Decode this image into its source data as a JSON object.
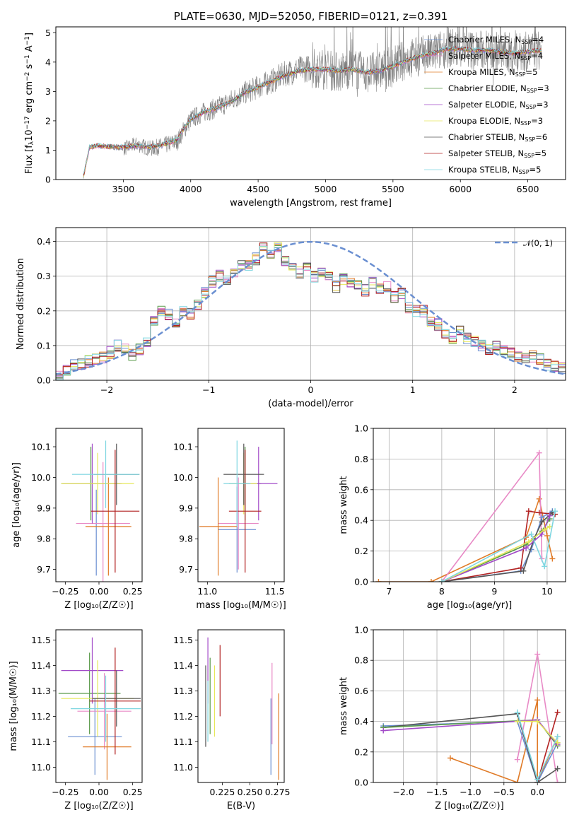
{
  "colors": {
    "chabrier_miles": "#6a8fd1",
    "salpeter_miles": "#e88ac6",
    "kroupa_miles": "#e07b28",
    "chabrier_elodie": "#5a9a4a",
    "salpeter_elodie": "#a24ac8",
    "kroupa_elodie": "#e6e85a",
    "chabrier_stelib": "#555555",
    "salpeter_stelib": "#b22222",
    "kroupa_stelib": "#7fd6e0",
    "data": "#808080",
    "gauss": "#6a8fd1"
  },
  "chart_data": [
    {
      "id": "spectrum",
      "type": "line",
      "title": "PLATE=0630, MJD=52050, FIBERID=0121, z=0.391",
      "xlabel": "wavelength [Angstrom, rest frame]",
      "ylabel_parts": [
        "Flux [f",
        "λ",
        "10",
        "−17",
        " erg cm",
        "−2",
        " s",
        "−1",
        " A",
        "−1",
        "]"
      ],
      "xlim": [
        3000,
        6780
      ],
      "ylim": [
        0,
        5.2
      ],
      "xticks": [
        3500,
        4000,
        4500,
        5000,
        5500,
        6000,
        6500
      ],
      "yticks": [
        0,
        1,
        2,
        3,
        4,
        5
      ],
      "x": [
        3200,
        3250,
        3300,
        3400,
        3500,
        3600,
        3700,
        3800,
        3900,
        3950,
        4000,
        4100,
        4200,
        4300,
        4400,
        4500,
        4600,
        4700,
        4800,
        4900,
        5000,
        5100,
        5200,
        5300,
        5400,
        5500,
        5600,
        5700,
        5800,
        5900,
        6000,
        6100,
        6200,
        6300,
        6400,
        6500,
        6600
      ],
      "data_flux": [
        0.0,
        1.1,
        1.15,
        1.1,
        1.05,
        1.2,
        1.05,
        1.15,
        1.3,
        1.7,
        2.05,
        2.3,
        2.45,
        2.7,
        2.95,
        3.15,
        3.35,
        3.6,
        3.75,
        3.8,
        3.75,
        3.65,
        3.8,
        3.6,
        3.7,
        3.85,
        4.1,
        4.2,
        4.3,
        4.5,
        4.45,
        4.4,
        4.4,
        4.35,
        4.3,
        4.35,
        4.4
      ],
      "model_flux": [
        0.0,
        1.1,
        1.15,
        1.12,
        1.1,
        1.15,
        1.1,
        1.2,
        1.35,
        1.75,
        2.05,
        2.3,
        2.45,
        2.65,
        2.95,
        3.15,
        3.35,
        3.55,
        3.7,
        3.75,
        3.75,
        3.7,
        3.75,
        3.65,
        3.7,
        3.85,
        4.05,
        4.2,
        4.3,
        4.45,
        4.45,
        4.4,
        4.4,
        4.35,
        4.3,
        4.35,
        4.4
      ],
      "legend_loc": "upper right",
      "legend": [
        {
          "name": "Chabrier MILES",
          "n": "4",
          "color_key": "chabrier_miles"
        },
        {
          "name": "Salpeter MILES",
          "n": "4",
          "color_key": "salpeter_miles"
        },
        {
          "name": "Kroupa MILES",
          "n": "5",
          "color_key": "kroupa_miles"
        },
        {
          "name": "Chabrier ELODIE",
          "n": "3",
          "color_key": "chabrier_elodie"
        },
        {
          "name": "Salpeter ELODIE",
          "n": "3",
          "color_key": "salpeter_elodie"
        },
        {
          "name": "Kroupa ELODIE",
          "n": "3",
          "color_key": "kroupa_elodie"
        },
        {
          "name": "Chabrier STELIB",
          "n": "6",
          "color_key": "chabrier_stelib"
        },
        {
          "name": "Salpeter STELIB",
          "n": "5",
          "color_key": "salpeter_stelib"
        },
        {
          "name": "Kroupa STELIB",
          "n": "5",
          "color_key": "kroupa_stelib"
        }
      ]
    },
    {
      "id": "residuals",
      "type": "line",
      "xlabel": "(data-model)/error",
      "ylabel": "Normed distribution",
      "xlim": [
        -2.5,
        2.5
      ],
      "ylim": [
        0,
        0.44
      ],
      "xticks": [
        -2,
        -1,
        0,
        1,
        2
      ],
      "xticklabels": [
        "−2",
        "−1",
        "0",
        "1",
        "2"
      ],
      "yticks": [
        0.0,
        0.1,
        0.2,
        0.3,
        0.4
      ],
      "yticklabels": [
        "0.0",
        "0.1",
        "0.2",
        "0.3",
        "0.4"
      ],
      "bin_width": 0.1,
      "hist_base": [
        0.018,
        0.028,
        0.042,
        0.048,
        0.055,
        0.06,
        0.065,
        0.08,
        0.1,
        0.09,
        0.075,
        0.09,
        0.11,
        0.17,
        0.2,
        0.19,
        0.165,
        0.2,
        0.19,
        0.215,
        0.255,
        0.285,
        0.3,
        0.285,
        0.31,
        0.33,
        0.33,
        0.35,
        0.38,
        0.36,
        0.38,
        0.34,
        0.32,
        0.31,
        0.33,
        0.3,
        0.31,
        0.3,
        0.27,
        0.29,
        0.28,
        0.27,
        0.26,
        0.28,
        0.26,
        0.27,
        0.24,
        0.25,
        0.21,
        0.2,
        0.2,
        0.17,
        0.16,
        0.13,
        0.12,
        0.14,
        0.12,
        0.11,
        0.1,
        0.09,
        0.1,
        0.085,
        0.08,
        0.07,
        0.065,
        0.07,
        0.06,
        0.045,
        0.04,
        0.035
      ],
      "legend": [
        {
          "name": "𝒩(0, 1)",
          "color_key": "gauss",
          "style": "dashed"
        }
      ],
      "legend_loc": "upper right"
    },
    {
      "id": "z_age",
      "type": "scatter",
      "xlabel": "Z [log₁₀(Z/Z☉)]",
      "ylabel": "age  [log₁₀(age/yr)]",
      "xlim": [
        -0.32,
        0.32
      ],
      "ylim": [
        9.66,
        10.16
      ],
      "xticks": [
        -0.25,
        0.0,
        0.25
      ],
      "xticklabels": [
        "−0.25",
        "0.00",
        "0.25"
      ],
      "yticks": [
        9.7,
        9.8,
        9.9,
        10.0,
        10.1
      ],
      "yticklabels": [
        "9.7",
        "9.8",
        "9.9",
        "10.0",
        "10.1"
      ],
      "points": [
        {
          "x": -0.02,
          "y": 9.82,
          "xerr": 0.0,
          "yerr": 0.14,
          "color_key": "chabrier_miles"
        },
        {
          "x": 0.03,
          "y": 9.85,
          "xerr": 0.2,
          "yerr": 0.2,
          "color_key": "salpeter_miles"
        },
        {
          "x": 0.07,
          "y": 9.84,
          "xerr": 0.17,
          "yerr": 0.16,
          "color_key": "kroupa_miles"
        },
        {
          "x": -0.06,
          "y": 9.98,
          "xerr": 0.22,
          "yerr": 0.12,
          "color_key": "chabrier_elodie"
        },
        {
          "x": -0.05,
          "y": 9.98,
          "xerr": 0.22,
          "yerr": 0.13,
          "color_key": "salpeter_elodie"
        },
        {
          "x": -0.01,
          "y": 9.98,
          "xerr": 0.27,
          "yerr": 0.1,
          "color_key": "kroupa_elodie"
        },
        {
          "x": 0.13,
          "y": 10.01,
          "xerr": 0.17,
          "yerr": 0.1,
          "color_key": "chabrier_stelib"
        },
        {
          "x": 0.12,
          "y": 9.89,
          "xerr": 0.18,
          "yerr": 0.2,
          "color_key": "salpeter_stelib"
        },
        {
          "x": 0.05,
          "y": 10.01,
          "xerr": 0.25,
          "yerr": 0.11,
          "color_key": "kroupa_stelib"
        }
      ]
    },
    {
      "id": "mass_age",
      "type": "scatter",
      "xlabel": "mass [log₁₀(M/M☉)]",
      "xlim": [
        10.93,
        11.57
      ],
      "ylim": [
        9.66,
        10.16
      ],
      "xticks": [
        11.0,
        11.5
      ],
      "xticklabels": [
        "11.0",
        "11.5"
      ],
      "yticks": [
        9.7,
        9.8,
        9.9,
        10.0,
        10.1
      ],
      "yticklabels": [
        "9.7",
        "9.8",
        "9.9",
        "10.0",
        "10.1"
      ],
      "points": [
        {
          "x": 11.22,
          "y": 9.83,
          "xerr": 0.14,
          "yerr": 0.14,
          "color_key": "chabrier_miles"
        },
        {
          "x": 11.23,
          "y": 9.85,
          "xerr": 0.15,
          "yerr": 0.15,
          "color_key": "salpeter_miles"
        },
        {
          "x": 11.08,
          "y": 9.84,
          "xerr": 0.14,
          "yerr": 0.16,
          "color_key": "kroupa_miles"
        },
        {
          "x": 11.28,
          "y": 9.98,
          "xerr": 0.12,
          "yerr": 0.12,
          "color_key": "chabrier_elodie"
        },
        {
          "x": 11.38,
          "y": 9.98,
          "xerr": 0.14,
          "yerr": 0.12,
          "color_key": "salpeter_elodie"
        },
        {
          "x": 11.27,
          "y": 9.98,
          "xerr": 0.1,
          "yerr": 0.1,
          "color_key": "kroupa_elodie"
        },
        {
          "x": 11.27,
          "y": 10.01,
          "xerr": 0.15,
          "yerr": 0.1,
          "color_key": "chabrier_stelib"
        },
        {
          "x": 11.28,
          "y": 9.89,
          "xerr": 0.12,
          "yerr": 0.2,
          "color_key": "salpeter_stelib"
        },
        {
          "x": 11.22,
          "y": 9.98,
          "xerr": 0.1,
          "yerr": 0.14,
          "color_key": "kroupa_stelib"
        }
      ]
    },
    {
      "id": "age_weight",
      "type": "line",
      "xlabel": "age  [log₁₀(age/yr)]",
      "ylabel": "mass weight",
      "xlim": [
        6.7,
        10.35
      ],
      "ylim": [
        0,
        1.0
      ],
      "xticks": [
        7,
        8,
        9,
        10
      ],
      "xticklabels": [
        "7",
        "8",
        "9",
        "10"
      ],
      "yticks": [
        0.0,
        0.2,
        0.4,
        0.6,
        0.8,
        1.0
      ],
      "yticklabels": [
        "0.0",
        "0.2",
        "0.4",
        "0.6",
        "0.8",
        "1.0"
      ],
      "series": [
        {
          "color_key": "kroupa_miles",
          "x": [
            6.8,
            7.8,
            9.6,
            9.85,
            10.0,
            10.1
          ],
          "y": [
            0.0,
            0.0,
            0.29,
            0.54,
            0.3,
            0.15
          ]
        },
        {
          "color_key": "salpeter_miles",
          "x": [
            8.0,
            9.85,
            9.9
          ],
          "y": [
            0.0,
            0.84,
            0.15
          ]
        },
        {
          "color_key": "chabrier_miles",
          "x": [
            8.0,
            9.5,
            9.7,
            9.9,
            10.1
          ],
          "y": [
            0.0,
            0.07,
            0.21,
            0.42,
            0.46
          ]
        },
        {
          "color_key": "salpeter_stelib",
          "x": [
            8.0,
            9.5,
            9.65,
            9.85,
            10.15
          ],
          "y": [
            0.0,
            0.09,
            0.46,
            0.45,
            0.44
          ]
        },
        {
          "color_key": "chabrier_stelib",
          "x": [
            8.0,
            9.55,
            9.75,
            9.9,
            10.1
          ],
          "y": [
            0.0,
            0.07,
            0.28,
            0.39,
            0.45
          ]
        },
        {
          "color_key": "chabrier_elodie",
          "x": [
            8.0,
            9.6,
            9.9,
            10.05
          ],
          "y": [
            0.0,
            0.24,
            0.33,
            0.41
          ]
        },
        {
          "color_key": "salpeter_elodie",
          "x": [
            8.0,
            9.6,
            9.9,
            10.05
          ],
          "y": [
            0.0,
            0.22,
            0.31,
            0.43
          ]
        },
        {
          "color_key": "kroupa_elodie",
          "x": [
            8.0,
            9.65,
            9.95,
            10.05
          ],
          "y": [
            0.0,
            0.26,
            0.34,
            0.36
          ]
        },
        {
          "color_key": "kroupa_stelib",
          "x": [
            8.0,
            9.7,
            9.95,
            10.15
          ],
          "y": [
            0.0,
            0.31,
            0.1,
            0.46
          ]
        }
      ]
    },
    {
      "id": "z_mass",
      "type": "scatter",
      "xlabel": "Z [log₁₀(Z/Z☉)]",
      "ylabel": "mass [log₁₀(M/M☉)]",
      "xlim": [
        -0.32,
        0.32
      ],
      "ylim": [
        10.94,
        11.54
      ],
      "xticks": [
        -0.25,
        0.0,
        0.25
      ],
      "xticklabels": [
        "−0.25",
        "0.00",
        "0.25"
      ],
      "yticks": [
        11.0,
        11.1,
        11.2,
        11.3,
        11.4,
        11.5
      ],
      "yticklabels": [
        "11.0",
        "11.1",
        "11.2",
        "11.3",
        "11.4",
        "11.5"
      ],
      "points": [
        {
          "x": -0.03,
          "y": 11.12,
          "xerr": 0.2,
          "yerr": 0.15,
          "color_key": "chabrier_miles"
        },
        {
          "x": 0.04,
          "y": 11.22,
          "xerr": 0.2,
          "yerr": 0.15,
          "color_key": "salpeter_miles"
        },
        {
          "x": 0.06,
          "y": 11.08,
          "xerr": 0.18,
          "yerr": 0.13,
          "color_key": "kroupa_miles"
        },
        {
          "x": -0.07,
          "y": 11.29,
          "xerr": 0.23,
          "yerr": 0.16,
          "color_key": "chabrier_elodie"
        },
        {
          "x": -0.05,
          "y": 11.38,
          "xerr": 0.23,
          "yerr": 0.13,
          "color_key": "salpeter_elodie"
        },
        {
          "x": -0.01,
          "y": 11.27,
          "xerr": 0.27,
          "yerr": 0.15,
          "color_key": "kroupa_elodie"
        },
        {
          "x": 0.13,
          "y": 11.27,
          "xerr": 0.18,
          "yerr": 0.11,
          "color_key": "chabrier_stelib"
        },
        {
          "x": 0.12,
          "y": 11.26,
          "xerr": 0.19,
          "yerr": 0.21,
          "color_key": "salpeter_stelib"
        },
        {
          "x": 0.05,
          "y": 11.23,
          "xerr": 0.26,
          "yerr": 0.13,
          "color_key": "kroupa_stelib"
        }
      ]
    },
    {
      "id": "ebv_mass",
      "type": "scatter",
      "xlabel": "E(B-V)",
      "xlim": [
        0.203,
        0.281
      ],
      "ylim": [
        10.94,
        11.54
      ],
      "xticks": [
        0.225,
        0.25,
        0.275
      ],
      "xticklabels": [
        "0.225",
        "0.250",
        "0.275"
      ],
      "yticks": [
        11.0,
        11.1,
        11.2,
        11.3,
        11.4,
        11.5
      ],
      "yticklabels": [
        "11.0",
        "11.1",
        "11.2",
        "11.3",
        "11.4",
        "11.5"
      ],
      "points": [
        {
          "x": 0.269,
          "y": 11.12,
          "yerr": 0.15,
          "color_key": "chabrier_miles"
        },
        {
          "x": 0.27,
          "y": 11.25,
          "yerr": 0.16,
          "color_key": "salpeter_miles"
        },
        {
          "x": 0.276,
          "y": 11.12,
          "yerr": 0.17,
          "color_key": "kroupa_miles"
        },
        {
          "x": 0.214,
          "y": 11.28,
          "yerr": 0.15,
          "color_key": "chabrier_elodie"
        },
        {
          "x": 0.212,
          "y": 11.38,
          "yerr": 0.13,
          "color_key": "salpeter_elodie"
        },
        {
          "x": 0.218,
          "y": 11.26,
          "yerr": 0.14,
          "color_key": "kroupa_elodie"
        },
        {
          "x": 0.21,
          "y": 11.24,
          "yerr": 0.16,
          "color_key": "chabrier_stelib"
        },
        {
          "x": 0.223,
          "y": 11.34,
          "yerr": 0.14,
          "color_key": "salpeter_stelib"
        },
        {
          "x": 0.212,
          "y": 11.22,
          "yerr": 0.12,
          "color_key": "kroupa_stelib"
        }
      ]
    },
    {
      "id": "z_weight",
      "type": "line",
      "xlabel": "Z [log₁₀(Z/Z☉)]",
      "ylabel": "mass weight",
      "xlim": [
        -2.45,
        0.42
      ],
      "ylim": [
        0,
        1.0
      ],
      "xticks": [
        -2.0,
        -1.5,
        -1.0,
        -0.5,
        0.0
      ],
      "xticklabels": [
        "−2.0",
        "−1.5",
        "−1.0",
        "−0.5",
        "0.0"
      ],
      "yticks": [
        0.0,
        0.2,
        0.4,
        0.6,
        0.8,
        1.0
      ],
      "yticklabels": [
        "0.0",
        "0.2",
        "0.4",
        "0.6",
        "0.8",
        "1.0"
      ],
      "series": [
        {
          "color_key": "kroupa_miles",
          "x": [
            -1.3,
            -0.3,
            0.0,
            0.0,
            0.3
          ],
          "y": [
            0.16,
            0.0,
            0.54,
            0.0,
            0.3
          ]
        },
        {
          "color_key": "salpeter_miles",
          "x": [
            -0.3,
            0.0,
            0.3
          ],
          "y": [
            0.15,
            0.84,
            0.0
          ]
        },
        {
          "color_key": "chabrier_miles",
          "x": [
            -2.3,
            -0.3,
            0.0,
            0.3
          ],
          "y": [
            0.37,
            0.4,
            0.0,
            0.26
          ]
        },
        {
          "color_key": "salpeter_stelib",
          "x": [
            -0.3,
            0.0,
            0.3
          ],
          "y": [
            0.45,
            0.0,
            0.46
          ]
        },
        {
          "color_key": "chabrier_stelib",
          "x": [
            -2.3,
            -0.3,
            0.0,
            0.3
          ],
          "y": [
            0.36,
            0.45,
            0.0,
            0.09
          ]
        },
        {
          "color_key": "chabrier_elodie",
          "x": [
            -2.3,
            0.0,
            0.3
          ],
          "y": [
            0.36,
            0.41,
            0.24
          ]
        },
        {
          "color_key": "salpeter_elodie",
          "x": [
            -2.3,
            0.0,
            0.3
          ],
          "y": [
            0.34,
            0.41,
            0.25
          ]
        },
        {
          "color_key": "kroupa_elodie",
          "x": [
            -0.3,
            0.0,
            0.3
          ],
          "y": [
            0.4,
            0.4,
            0.26
          ]
        },
        {
          "color_key": "kroupa_stelib",
          "x": [
            -0.3,
            0.0,
            0.3
          ],
          "y": [
            0.46,
            0.02,
            0.3
          ]
        }
      ]
    }
  ]
}
